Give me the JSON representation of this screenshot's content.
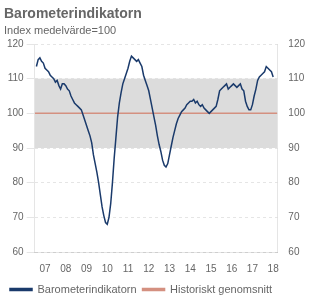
{
  "chart_data": {
    "type": "line",
    "title": "Barometerindikatorn",
    "subtitle": "Index medelvärde=100",
    "xlim": [
      2006.5,
      2018.2
    ],
    "xticks": [
      {
        "value": 2007,
        "label": "07"
      },
      {
        "value": 2008,
        "label": "08"
      },
      {
        "value": 2009,
        "label": "09"
      },
      {
        "value": 2010,
        "label": "10"
      },
      {
        "value": 2011,
        "label": "11"
      },
      {
        "value": 2012,
        "label": "12"
      },
      {
        "value": 2013,
        "label": "13"
      },
      {
        "value": 2014,
        "label": "14"
      },
      {
        "value": 2015,
        "label": "15"
      },
      {
        "value": 2016,
        "label": "16"
      },
      {
        "value": 2017,
        "label": "17"
      },
      {
        "value": 2018,
        "label": "18"
      }
    ],
    "ylim": [
      60,
      120
    ],
    "yticks": [
      60,
      70,
      80,
      90,
      100,
      110,
      120
    ],
    "y2lim": [
      60,
      120
    ],
    "y2ticks": [
      60,
      70,
      80,
      90,
      100,
      110,
      120
    ],
    "grid": true,
    "legend": "bottom",
    "band": {
      "values": [
        90,
        110
      ],
      "color": "#dcdcdc"
    },
    "x": [
      2006.583,
      2006.667,
      2006.75,
      2006.833,
      2006.917,
      2007.0,
      2007.083,
      2007.167,
      2007.25,
      2007.333,
      2007.417,
      2007.5,
      2007.583,
      2007.667,
      2007.75,
      2007.833,
      2007.917,
      2008.0,
      2008.083,
      2008.167,
      2008.25,
      2008.333,
      2008.417,
      2008.5,
      2008.583,
      2008.667,
      2008.75,
      2008.833,
      2008.917,
      2009.0,
      2009.083,
      2009.167,
      2009.25,
      2009.333,
      2009.417,
      2009.5,
      2009.583,
      2009.667,
      2009.75,
      2009.833,
      2009.917,
      2010.0,
      2010.083,
      2010.167,
      2010.25,
      2010.333,
      2010.417,
      2010.5,
      2010.583,
      2010.667,
      2010.75,
      2010.833,
      2010.917,
      2011.0,
      2011.083,
      2011.167,
      2011.25,
      2011.333,
      2011.417,
      2011.5,
      2011.583,
      2011.667,
      2011.75,
      2011.833,
      2011.917,
      2012.0,
      2012.083,
      2012.167,
      2012.25,
      2012.333,
      2012.417,
      2012.5,
      2012.583,
      2012.667,
      2012.75,
      2012.833,
      2012.917,
      2013.0,
      2013.083,
      2013.167,
      2013.25,
      2013.333,
      2013.417,
      2013.5,
      2013.583,
      2013.667,
      2013.75,
      2013.833,
      2013.917,
      2014.0,
      2014.083,
      2014.167,
      2014.25,
      2014.333,
      2014.417,
      2014.5,
      2014.583,
      2014.667,
      2014.75,
      2014.833,
      2014.917,
      2015.0,
      2015.083,
      2015.167,
      2015.25,
      2015.333,
      2015.417,
      2015.5,
      2015.583,
      2015.667,
      2015.75,
      2015.833,
      2015.917,
      2016.0,
      2016.083,
      2016.167,
      2016.25,
      2016.333,
      2016.417,
      2016.5,
      2016.583,
      2016.667,
      2016.75,
      2016.833,
      2016.917,
      2017.0,
      2017.083,
      2017.167,
      2017.25,
      2017.333,
      2017.417,
      2017.5,
      2017.583,
      2017.667,
      2017.75,
      2017.833,
      2017.917,
      2018.0
    ],
    "series": [
      {
        "name": "Barometerindikatorn",
        "color": "#1a3a6b",
        "values": [
          113.5,
          115.5,
          116.0,
          115.0,
          114.5,
          113.0,
          112.5,
          112.0,
          111.0,
          110.5,
          110.0,
          109.0,
          109.5,
          108.0,
          107.0,
          108.5,
          108.5,
          108.0,
          107.0,
          106.5,
          105.0,
          104.0,
          103.0,
          102.5,
          102.0,
          101.5,
          101.0,
          99.5,
          98.0,
          96.5,
          95.0,
          93.5,
          91.5,
          88.0,
          85.5,
          83.0,
          80.0,
          76.5,
          73.0,
          70.5,
          68.5,
          68.0,
          70.0,
          74.0,
          80.0,
          87.0,
          93.0,
          99.0,
          103.0,
          106.0,
          108.5,
          110.0,
          111.5,
          113.0,
          115.0,
          116.5,
          116.0,
          115.5,
          115.0,
          115.5,
          114.5,
          113.5,
          111.0,
          109.5,
          108.0,
          106.5,
          104.0,
          101.5,
          99.0,
          96.5,
          93.5,
          91.0,
          89.0,
          86.5,
          85.0,
          84.5,
          85.5,
          88.0,
          90.5,
          93.0,
          95.0,
          97.0,
          98.5,
          99.5,
          100.5,
          101.0,
          101.5,
          102.5,
          103.0,
          103.5,
          103.5,
          104.0,
          103.0,
          103.5,
          102.5,
          102.0,
          102.5,
          101.5,
          101.0,
          100.5,
          100.0,
          100.5,
          101.0,
          101.5,
          102.0,
          104.0,
          106.5,
          107.0,
          107.5,
          108.0,
          108.5,
          107.0,
          107.5,
          108.0,
          108.5,
          108.0,
          107.5,
          108.0,
          108.5,
          107.0,
          106.5,
          103.5,
          102.0,
          101.0,
          101.0,
          102.5,
          105.0,
          107.0,
          109.5,
          110.5,
          111.0,
          111.5,
          112.0,
          113.5,
          113.0,
          112.5,
          112.0,
          110.5
        ]
      },
      {
        "name": "Historiskt genomsnitt",
        "color": "#d49080",
        "x": [
          2006.5,
          2018.2
        ],
        "values": [
          100,
          100
        ]
      }
    ]
  }
}
